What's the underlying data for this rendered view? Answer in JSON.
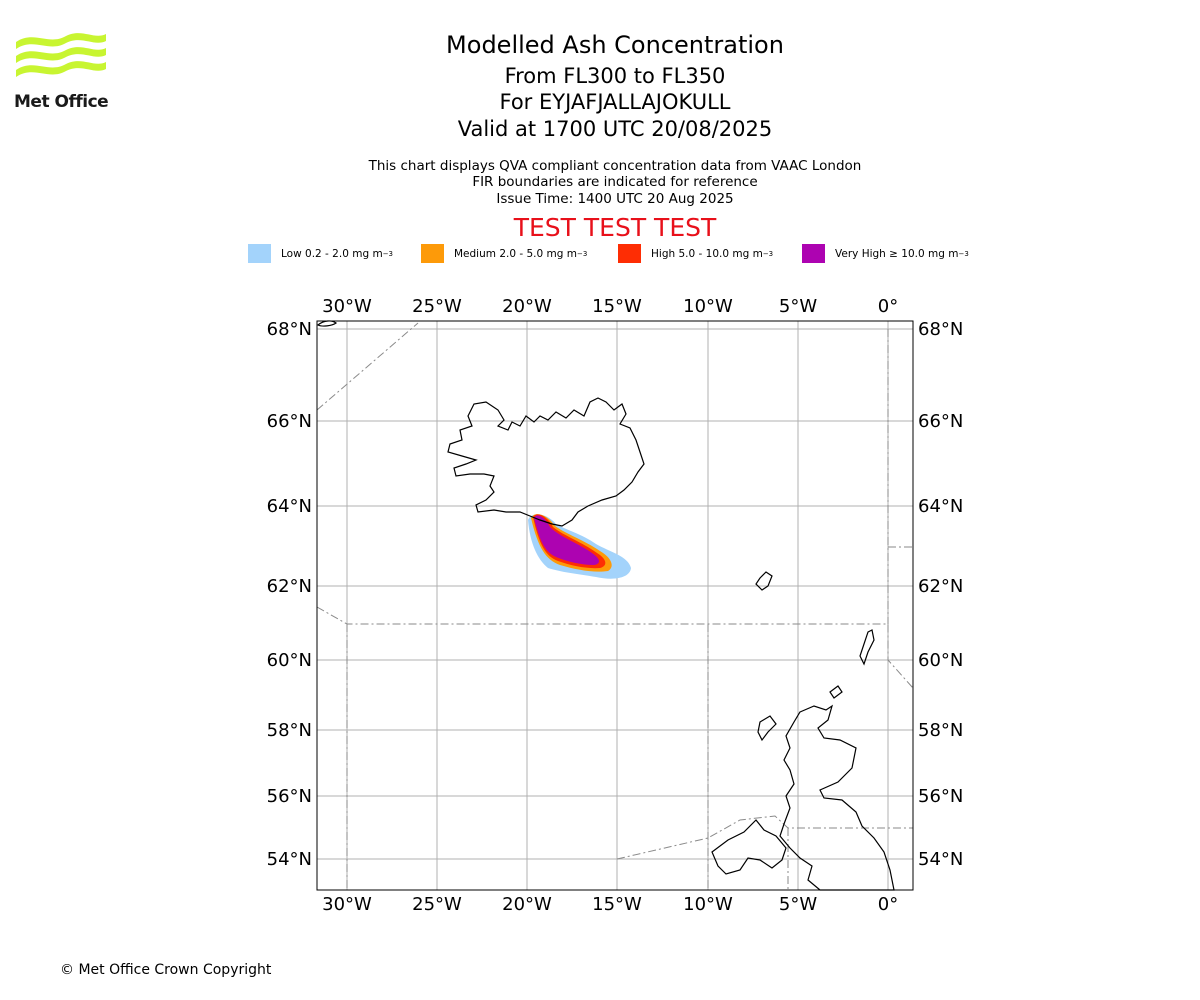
{
  "logo": {
    "text": "Met Office",
    "wave_color": "#c8f531"
  },
  "title": {
    "line1": "Modelled Ash Concentration",
    "line2": "From FL300 to FL350",
    "line3": "For EYJAFJALLAJOKULL",
    "line4": "Valid at 1700 UTC 20/08/2025"
  },
  "subtitle": {
    "line1": "This chart displays QVA compliant concentration data from VAAC London",
    "line2": "FIR boundaries are indicated for reference",
    "line3": "Issue Time: 1400 UTC 20 Aug 2025"
  },
  "test_banner": "TEST TEST TEST",
  "legend": [
    {
      "label": "Low 0.2 - 2.0 mg m",
      "sup": "−3",
      "color": "#a3d3fb"
    },
    {
      "label": "Medium 2.0 - 5.0 mg m",
      "sup": "−3",
      "color": "#fd9a09"
    },
    {
      "label": "High 5.0 - 10.0 mg m",
      "sup": "−3",
      "color": "#fe2d04"
    },
    {
      "label": "Very High ≥ 10.0 mg m",
      "sup": "−3",
      "color": "#ad03b1"
    }
  ],
  "map": {
    "longitude_ticks": [
      "30°W",
      "25°W",
      "20°W",
      "15°W",
      "10°W",
      "5°W",
      "0°"
    ],
    "latitude_ticks": [
      "68°N",
      "66°N",
      "64°N",
      "62°N",
      "60°N",
      "58°N",
      "56°N",
      "54°N"
    ],
    "colors": {
      "grid": "#b0b0b0",
      "coast": "#000000",
      "fir": "#8a8a8a"
    }
  },
  "copyright": "© Met Office Crown Copyright"
}
